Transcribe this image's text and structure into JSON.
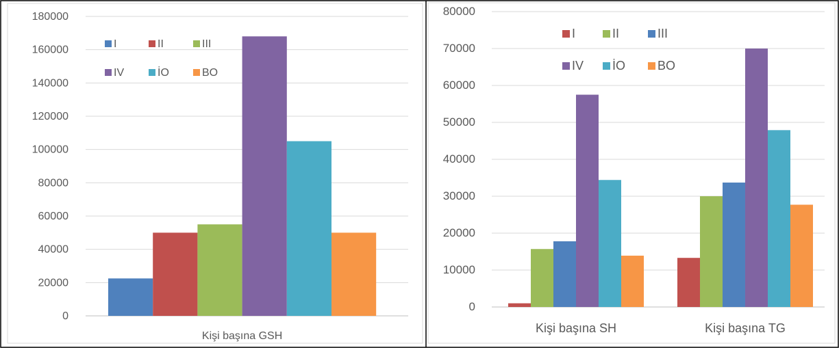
{
  "colors": {
    "I": "#4f81bd",
    "II": "#c0504d",
    "III": "#9bbb59",
    "IV": "#8064a2",
    "IO": "#4bacc6",
    "BO": "#f79646",
    "gridline": "#d9d9d9",
    "text": "#595959"
  },
  "chart_data": [
    {
      "type": "bar",
      "title": "",
      "xlabel": "",
      "ylabel": "",
      "ylim": [
        0,
        180000
      ],
      "yticks": [
        "0",
        "20000",
        "40000",
        "60000",
        "80000",
        "100000",
        "120000",
        "140000",
        "160000",
        "180000"
      ],
      "grid": true,
      "legend_position": "top-left",
      "categories": [
        "Kişi başına GSH"
      ],
      "series": [
        {
          "name": "I",
          "color_key": "I",
          "values": [
            22500
          ]
        },
        {
          "name": "II",
          "color_key": "II",
          "values": [
            50000
          ]
        },
        {
          "name": "III",
          "color_key": "III",
          "values": [
            55000
          ]
        },
        {
          "name": "IV",
          "color_key": "IV",
          "values": [
            168000
          ]
        },
        {
          "name": "İO",
          "color_key": "IO",
          "values": [
            105000
          ]
        },
        {
          "name": "BO",
          "color_key": "BO",
          "values": [
            50000
          ]
        }
      ]
    },
    {
      "type": "bar",
      "title": "",
      "xlabel": "",
      "ylabel": "",
      "ylim": [
        0,
        80000
      ],
      "yticks": [
        "0",
        "10000",
        "20000",
        "30000",
        "40000",
        "50000",
        "60000",
        "70000",
        "80000"
      ],
      "grid": true,
      "legend_position": "top-left",
      "categories": [
        "Kişi başına SH",
        "Kişi başına TG"
      ],
      "series": [
        {
          "name": "I",
          "color_key": "II",
          "values": [
            1000,
            13300
          ]
        },
        {
          "name": "II",
          "color_key": "III",
          "values": [
            15700,
            30000
          ]
        },
        {
          "name": "III",
          "color_key": "I",
          "values": [
            17800,
            33700
          ]
        },
        {
          "name": "IV",
          "color_key": "IV",
          "values": [
            57500,
            70000
          ]
        },
        {
          "name": "İO",
          "color_key": "IO",
          "values": [
            34400,
            47900
          ]
        },
        {
          "name": "BO",
          "color_key": "BO",
          "values": [
            13900,
            27700
          ]
        }
      ]
    }
  ]
}
